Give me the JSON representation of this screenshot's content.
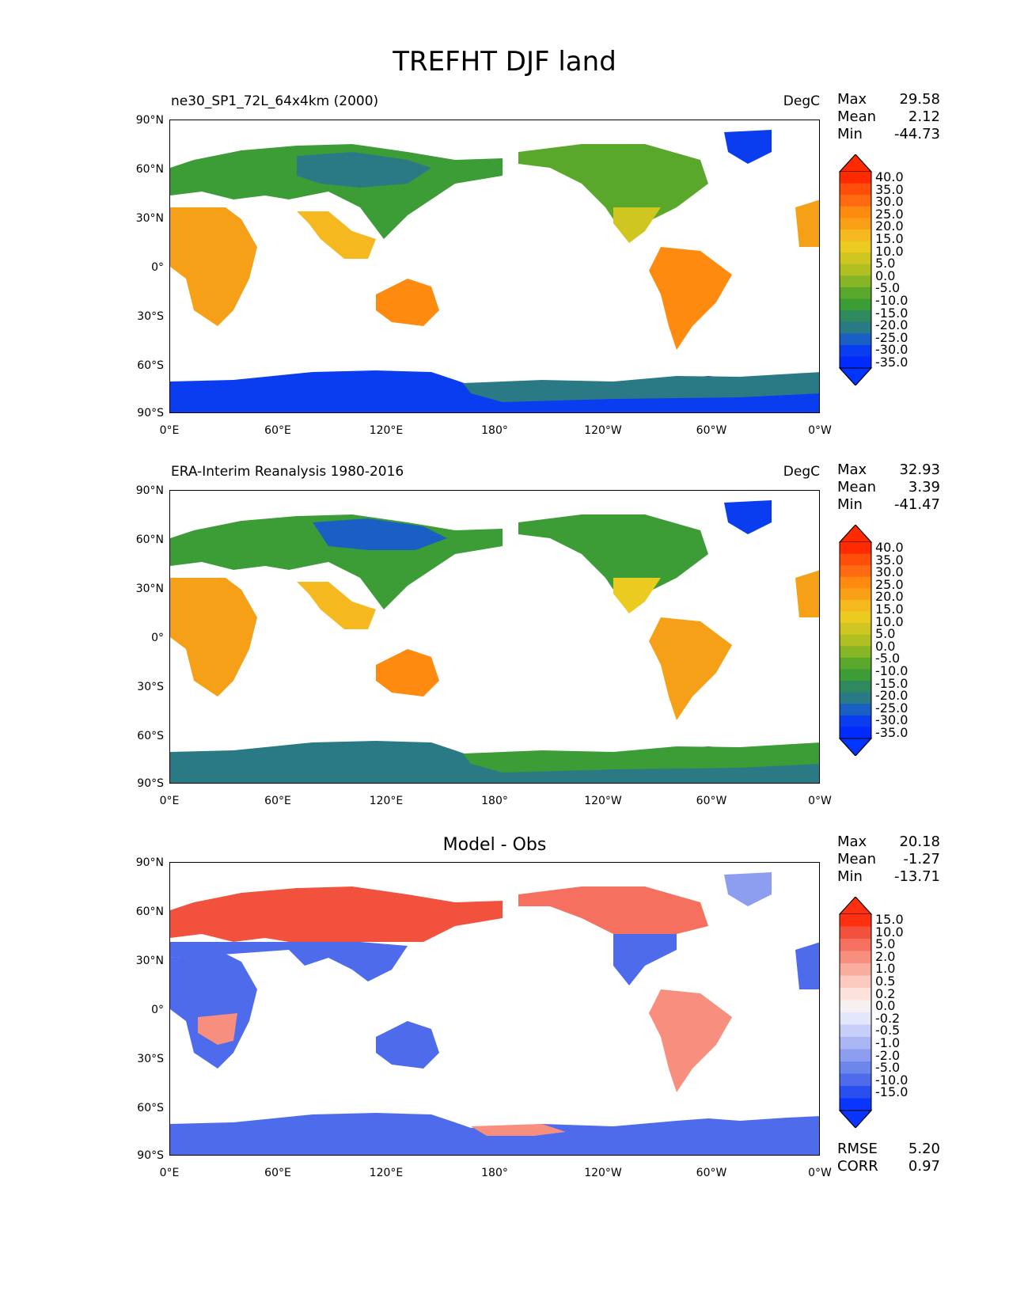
{
  "title": "TREFHT DJF land",
  "lat_ticks": [
    "90°N",
    "60°N",
    "30°N",
    "0°",
    "30°S",
    "60°S",
    "90°S"
  ],
  "lon_ticks": [
    "0°E",
    "60°E",
    "120°E",
    "180°",
    "120°W",
    "60°W",
    "0°W"
  ],
  "panels": [
    {
      "id": "model",
      "subtitle_left": "ne30_SP1_72L_64x4km (2000)",
      "subtitle_right": "DegC",
      "subtitle_center": "",
      "stats": [
        {
          "label": "Max",
          "value": "29.58"
        },
        {
          "label": "Mean",
          "value": "2.12"
        },
        {
          "label": "Min",
          "value": "-44.73"
        }
      ],
      "colorbar_labels": [
        "40.0",
        "35.0",
        "30.0",
        "25.0",
        "20.0",
        "15.0",
        "10.0",
        "5.0",
        "0.0",
        "-5.0",
        "-10.0",
        "-15.0",
        "-20.0",
        "-25.0",
        "-30.0",
        "-35.0"
      ],
      "colorbar_colors": [
        "#ff2a00",
        "#ff4d0a",
        "#ff6a10",
        "#ff8a10",
        "#f9a016",
        "#f5b81e",
        "#eccb20",
        "#cfc621",
        "#b0c022",
        "#86b526",
        "#5aa82b",
        "#3c9c36",
        "#2e8a5e",
        "#2a7a86",
        "#1a60c4",
        "#0a3cf0",
        "#002aff"
      ],
      "colorbar_low": "#0035ff",
      "colorbar_high": "#ff2a00",
      "bottom_stats": []
    },
    {
      "id": "obs",
      "subtitle_left": "ERA-Interim Reanalysis 1980-2016",
      "subtitle_right": "DegC",
      "subtitle_center": "",
      "stats": [
        {
          "label": "Max",
          "value": "32.93"
        },
        {
          "label": "Mean",
          "value": "3.39"
        },
        {
          "label": "Min",
          "value": "-41.47"
        }
      ],
      "colorbar_labels": [
        "40.0",
        "35.0",
        "30.0",
        "25.0",
        "20.0",
        "15.0",
        "10.0",
        "5.0",
        "0.0",
        "-5.0",
        "-10.0",
        "-15.0",
        "-20.0",
        "-25.0",
        "-30.0",
        "-35.0"
      ],
      "colorbar_colors": [
        "#ff2a00",
        "#ff4d0a",
        "#ff6a10",
        "#ff8a10",
        "#f9a016",
        "#f5b81e",
        "#eccb20",
        "#cfc621",
        "#b0c022",
        "#86b526",
        "#5aa82b",
        "#3c9c36",
        "#2e8a5e",
        "#2a7a86",
        "#1a60c4",
        "#0a3cf0",
        "#002aff"
      ],
      "colorbar_low": "#0035ff",
      "colorbar_high": "#ff2a00",
      "bottom_stats": []
    },
    {
      "id": "diff",
      "subtitle_left": "",
      "subtitle_right": "",
      "subtitle_center": "Model - Obs",
      "stats": [
        {
          "label": "Max",
          "value": "20.18"
        },
        {
          "label": "Mean",
          "value": "-1.27"
        },
        {
          "label": "Min",
          "value": "-13.71"
        }
      ],
      "colorbar_labels": [
        "15.0",
        "10.0",
        "5.0",
        "2.0",
        "1.0",
        "0.5",
        "0.2",
        "0.0",
        "-0.2",
        "-0.5",
        "-1.0",
        "-2.0",
        "-5.0",
        "-10.0",
        "-15.0"
      ],
      "colorbar_colors": [
        "#ff3010",
        "#f2523d",
        "#f5705e",
        "#f78e7e",
        "#f9ad9f",
        "#fbc9bf",
        "#fde2db",
        "#f7f0f0",
        "#e4e7fb",
        "#c7cff8",
        "#a9b6f3",
        "#8d9ef0",
        "#6d86ec",
        "#4d6bea",
        "#2a4ff0",
        "#0a35ff"
      ],
      "colorbar_low": "#0a35ff",
      "colorbar_high": "#ff3010",
      "bottom_stats": [
        {
          "label": "RMSE",
          "value": "5.20"
        },
        {
          "label": "CORR",
          "value": "0.97"
        }
      ]
    }
  ],
  "legend": {
    "ocean": "#ffffff",
    "coast": "#000000"
  }
}
